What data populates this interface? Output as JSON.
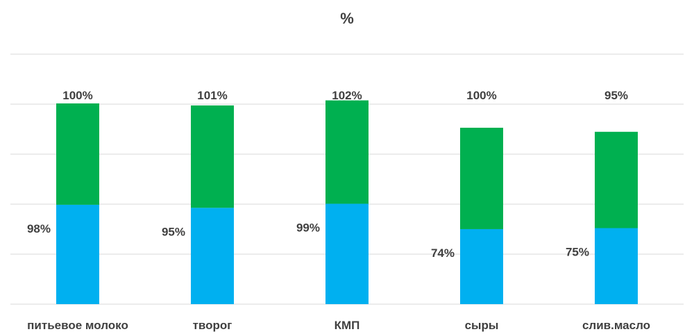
{
  "chart_data": {
    "type": "bar",
    "title": "%",
    "categories": [
      "питьевое молоко",
      "творог",
      "КМП",
      "сыры",
      "слив.масло"
    ],
    "series": [
      {
        "color": "#00B0F0",
        "values": [
          98,
          95,
          99,
          74,
          75
        ],
        "labels": [
          "98%",
          "95%",
          "99%",
          "74%",
          "75%"
        ]
      },
      {
        "color": "#00B050",
        "values": [
          100,
          101,
          102,
          100,
          95
        ],
        "labels": [
          "100%",
          "101%",
          "102%",
          "100%",
          "95%"
        ]
      }
    ],
    "stacked": true,
    "grid": true,
    "legend": "none"
  }
}
